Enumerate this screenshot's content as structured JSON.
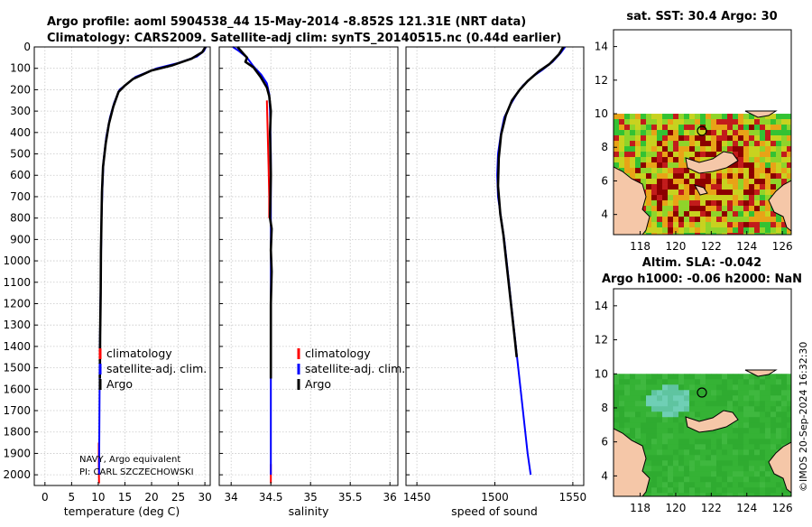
{
  "title_line1": "Argo profile: aoml 5904538_44 15-May-2014 -8.852S 121.31E (NRT data)",
  "title_line2": "Climatology: CARS2009. Satellite-adj clim: synTS_20140515.nc (0.44d earlier)",
  "pi_line1": "NAVY, Argo equivalent",
  "pi_line2": "PI: CARL SZCZECHOWSKI",
  "timestamp": "©IMOS 20-Sep-2024 16:32:30",
  "map1_title": "sat. SST: 30.4 Argo: 30",
  "map2_title_line1": "Altim. SLA: -0.042",
  "map2_title_line2": "Argo h1000: -0.06 h2000: NaN",
  "legend": {
    "climatology": "climatology",
    "satellite": "satellite-adj. clim.",
    "argo": "Argo"
  },
  "colors": {
    "climatology": "#ff0000",
    "satellite": "#0000ff",
    "argo": "#000000",
    "land": "#f5c7a8"
  },
  "chart_data": [
    {
      "type": "line",
      "name": "temperature",
      "xlabel": "temperature (deg C)",
      "ylabel": "",
      "xlim": [
        -2,
        31
      ],
      "ylim": [
        2050,
        0
      ],
      "xticks": [
        0,
        5,
        10,
        15,
        20,
        25,
        30
      ],
      "xtick_labels": [
        "0",
        "5",
        "10",
        "15",
        "20",
        "25",
        "30"
      ],
      "yticks": [
        0,
        100,
        200,
        300,
        400,
        500,
        600,
        700,
        800,
        900,
        1000,
        1100,
        1200,
        1300,
        1400,
        1500,
        1600,
        1700,
        1800,
        1900,
        2000
      ],
      "ytick_labels": [
        "0",
        "100",
        "200",
        "300",
        "400",
        "500",
        "600",
        "700",
        "800",
        "900",
        "1000",
        "1100",
        "1200",
        "1300",
        "1400",
        "1500",
        "1600",
        "1700",
        "1800",
        "1900",
        "2000"
      ],
      "series": [
        {
          "name": "climatology",
          "points": [
            [
              10.1,
              1850
            ],
            [
              10.1,
              1950
            ],
            [
              10.15,
              2040
            ]
          ]
        },
        {
          "name": "satellite-adj. clim.",
          "points": [
            [
              30.2,
              0
            ],
            [
              29.8,
              20
            ],
            [
              28.5,
              45
            ],
            [
              25,
              75
            ],
            [
              21,
              100
            ],
            [
              17,
              140
            ],
            [
              15.5,
              170
            ],
            [
              14,
              200
            ],
            [
              13,
              260
            ],
            [
              12.2,
              330
            ],
            [
              11.5,
              420
            ],
            [
              11,
              530
            ],
            [
              10.8,
              650
            ],
            [
              10.6,
              800
            ],
            [
              10.5,
              1000
            ],
            [
              10.4,
              1200
            ],
            [
              10.3,
              1400
            ],
            [
              10.25,
              1600
            ],
            [
              10.2,
              1800
            ],
            [
              10.15,
              2000
            ]
          ]
        },
        {
          "name": "Argo",
          "points": [
            [
              30.1,
              0
            ],
            [
              29.5,
              25
            ],
            [
              27.5,
              55
            ],
            [
              24,
              85
            ],
            [
              20,
              110
            ],
            [
              16.5,
              150
            ],
            [
              15,
              180
            ],
            [
              13.8,
              210
            ],
            [
              12.8,
              280
            ],
            [
              12,
              360
            ],
            [
              11.4,
              450
            ],
            [
              10.9,
              560
            ],
            [
              10.7,
              680
            ],
            [
              10.6,
              800
            ],
            [
              10.5,
              950
            ],
            [
              10.45,
              1150
            ],
            [
              10.35,
              1350
            ],
            [
              10.3,
              1550
            ]
          ]
        }
      ]
    },
    {
      "type": "line",
      "name": "salinity",
      "xlabel": "salinity",
      "ylabel": "",
      "xlim": [
        33.85,
        36.1
      ],
      "ylim": [
        2050,
        0
      ],
      "xticks": [
        34,
        34.5,
        35,
        35.5,
        36
      ],
      "xtick_labels": [
        "34",
        "34.5",
        "35",
        "35.5",
        "36"
      ],
      "yticks": [
        0,
        100,
        200,
        300,
        400,
        500,
        600,
        700,
        800,
        900,
        1000,
        1100,
        1200,
        1300,
        1400,
        1500,
        1600,
        1700,
        1800,
        1900,
        2000
      ],
      "series": [
        {
          "name": "climatology",
          "points": [
            [
              34.45,
              250
            ],
            [
              34.46,
              400
            ],
            [
              34.47,
              550
            ],
            [
              34.48,
              700
            ],
            [
              34.48,
              800
            ]
          ]
        },
        {
          "name": "climatology_deep",
          "points": [
            [
              34.5,
              1950
            ],
            [
              34.5,
              2040
            ]
          ]
        },
        {
          "name": "satellite-adj. clim.",
          "points": [
            [
              34.02,
              0
            ],
            [
              34.1,
              20
            ],
            [
              34.2,
              50
            ],
            [
              34.28,
              90
            ],
            [
              34.38,
              130
            ],
            [
              34.45,
              170
            ],
            [
              34.48,
              220
            ],
            [
              34.49,
              300
            ],
            [
              34.5,
              500
            ],
            [
              34.5,
              800
            ],
            [
              34.5,
              1100
            ],
            [
              34.5,
              1400
            ],
            [
              34.5,
              1700
            ],
            [
              34.5,
              2000
            ]
          ]
        },
        {
          "name": "Argo",
          "points": [
            [
              34.08,
              0
            ],
            [
              34.15,
              30
            ],
            [
              34.2,
              50
            ],
            [
              34.18,
              70
            ],
            [
              34.28,
              95
            ],
            [
              34.37,
              140
            ],
            [
              34.45,
              190
            ],
            [
              34.48,
              230
            ],
            [
              34.5,
              300
            ],
            [
              34.49,
              400
            ],
            [
              34.5,
              600
            ],
            [
              34.49,
              800
            ],
            [
              34.51,
              850
            ],
            [
              34.5,
              950
            ],
            [
              34.51,
              1050
            ],
            [
              34.5,
              1200
            ],
            [
              34.5,
              1400
            ],
            [
              34.5,
              1550
            ]
          ]
        }
      ]
    },
    {
      "type": "line",
      "name": "speed of sound",
      "xlabel": "speed of sound",
      "ylabel": "",
      "xlim": [
        1443,
        1557
      ],
      "ylim": [
        2050,
        0
      ],
      "xticks": [
        1450,
        1500,
        1550
      ],
      "xtick_labels": [
        "1450",
        "1500",
        "1550"
      ],
      "yticks": [
        0,
        100,
        200,
        300,
        400,
        500,
        600,
        700,
        800,
        900,
        1000,
        1100,
        1200,
        1300,
        1400,
        1500,
        1600,
        1700,
        1800,
        1900,
        2000
      ],
      "series": [
        {
          "name": "satellite-adj. clim.",
          "points": [
            [
              1545,
              0
            ],
            [
              1542,
              30
            ],
            [
              1537,
              70
            ],
            [
              1530,
              110
            ],
            [
              1524,
              140
            ],
            [
              1518,
              180
            ],
            [
              1514,
              220
            ],
            [
              1510,
              270
            ],
            [
              1506,
              330
            ],
            [
              1504,
              400
            ],
            [
              1502,
              500
            ],
            [
              1501.5,
              600
            ],
            [
              1502,
              700
            ],
            [
              1504,
              800
            ],
            [
              1506,
              900
            ],
            [
              1507.5,
              1000
            ],
            [
              1509,
              1100
            ],
            [
              1510.5,
              1200
            ],
            [
              1512,
              1300
            ],
            [
              1513.5,
              1400
            ],
            [
              1515,
              1500
            ],
            [
              1516.5,
              1600
            ],
            [
              1518,
              1700
            ],
            [
              1519.5,
              1800
            ],
            [
              1521,
              1900
            ],
            [
              1523,
              2000
            ]
          ]
        },
        {
          "name": "Argo",
          "points": [
            [
              1544,
              0
            ],
            [
              1541,
              35
            ],
            [
              1535,
              80
            ],
            [
              1528,
              115
            ],
            [
              1521,
              160
            ],
            [
              1516,
              200
            ],
            [
              1511,
              250
            ],
            [
              1507,
              320
            ],
            [
              1504,
              410
            ],
            [
              1502.5,
              520
            ],
            [
              1502,
              650
            ],
            [
              1503.5,
              780
            ],
            [
              1505.5,
              880
            ],
            [
              1507,
              980
            ],
            [
              1508.5,
              1080
            ],
            [
              1510,
              1180
            ],
            [
              1511.5,
              1280
            ],
            [
              1513,
              1380
            ],
            [
              1514,
              1450
            ]
          ]
        }
      ]
    },
    {
      "type": "heatmap",
      "name": "sat SST map",
      "title": "sat. SST: 30.4 Argo: 30",
      "xlim": [
        116.5,
        126.5
      ],
      "ylim": [
        2.8,
        15
      ],
      "xticks": [
        118,
        120,
        122,
        124,
        126
      ],
      "xtick_labels": [
        "118",
        "120",
        "122",
        "124",
        "126"
      ],
      "yticks": [
        4,
        6,
        8,
        10,
        12,
        14
      ],
      "ytick_labels": [
        "4",
        "6",
        "8",
        "10",
        "12",
        "14"
      ],
      "data_ylim": [
        2.8,
        10
      ],
      "argo_position": [
        121.31,
        8.85
      ]
    },
    {
      "type": "heatmap",
      "name": "altimetry SLA map",
      "title": "Altim. SLA: -0.042",
      "xlim": [
        116.5,
        126.5
      ],
      "ylim": [
        2.8,
        15
      ],
      "xticks": [
        118,
        120,
        122,
        124,
        126
      ],
      "xtick_labels": [
        "118",
        "120",
        "122",
        "124",
        "126"
      ],
      "yticks": [
        4,
        6,
        8,
        10,
        12,
        14
      ],
      "ytick_labels": [
        "4",
        "6",
        "8",
        "10",
        "12",
        "14"
      ],
      "data_ylim": [
        2.8,
        10
      ],
      "argo_position": [
        121.31,
        8.85
      ]
    }
  ]
}
